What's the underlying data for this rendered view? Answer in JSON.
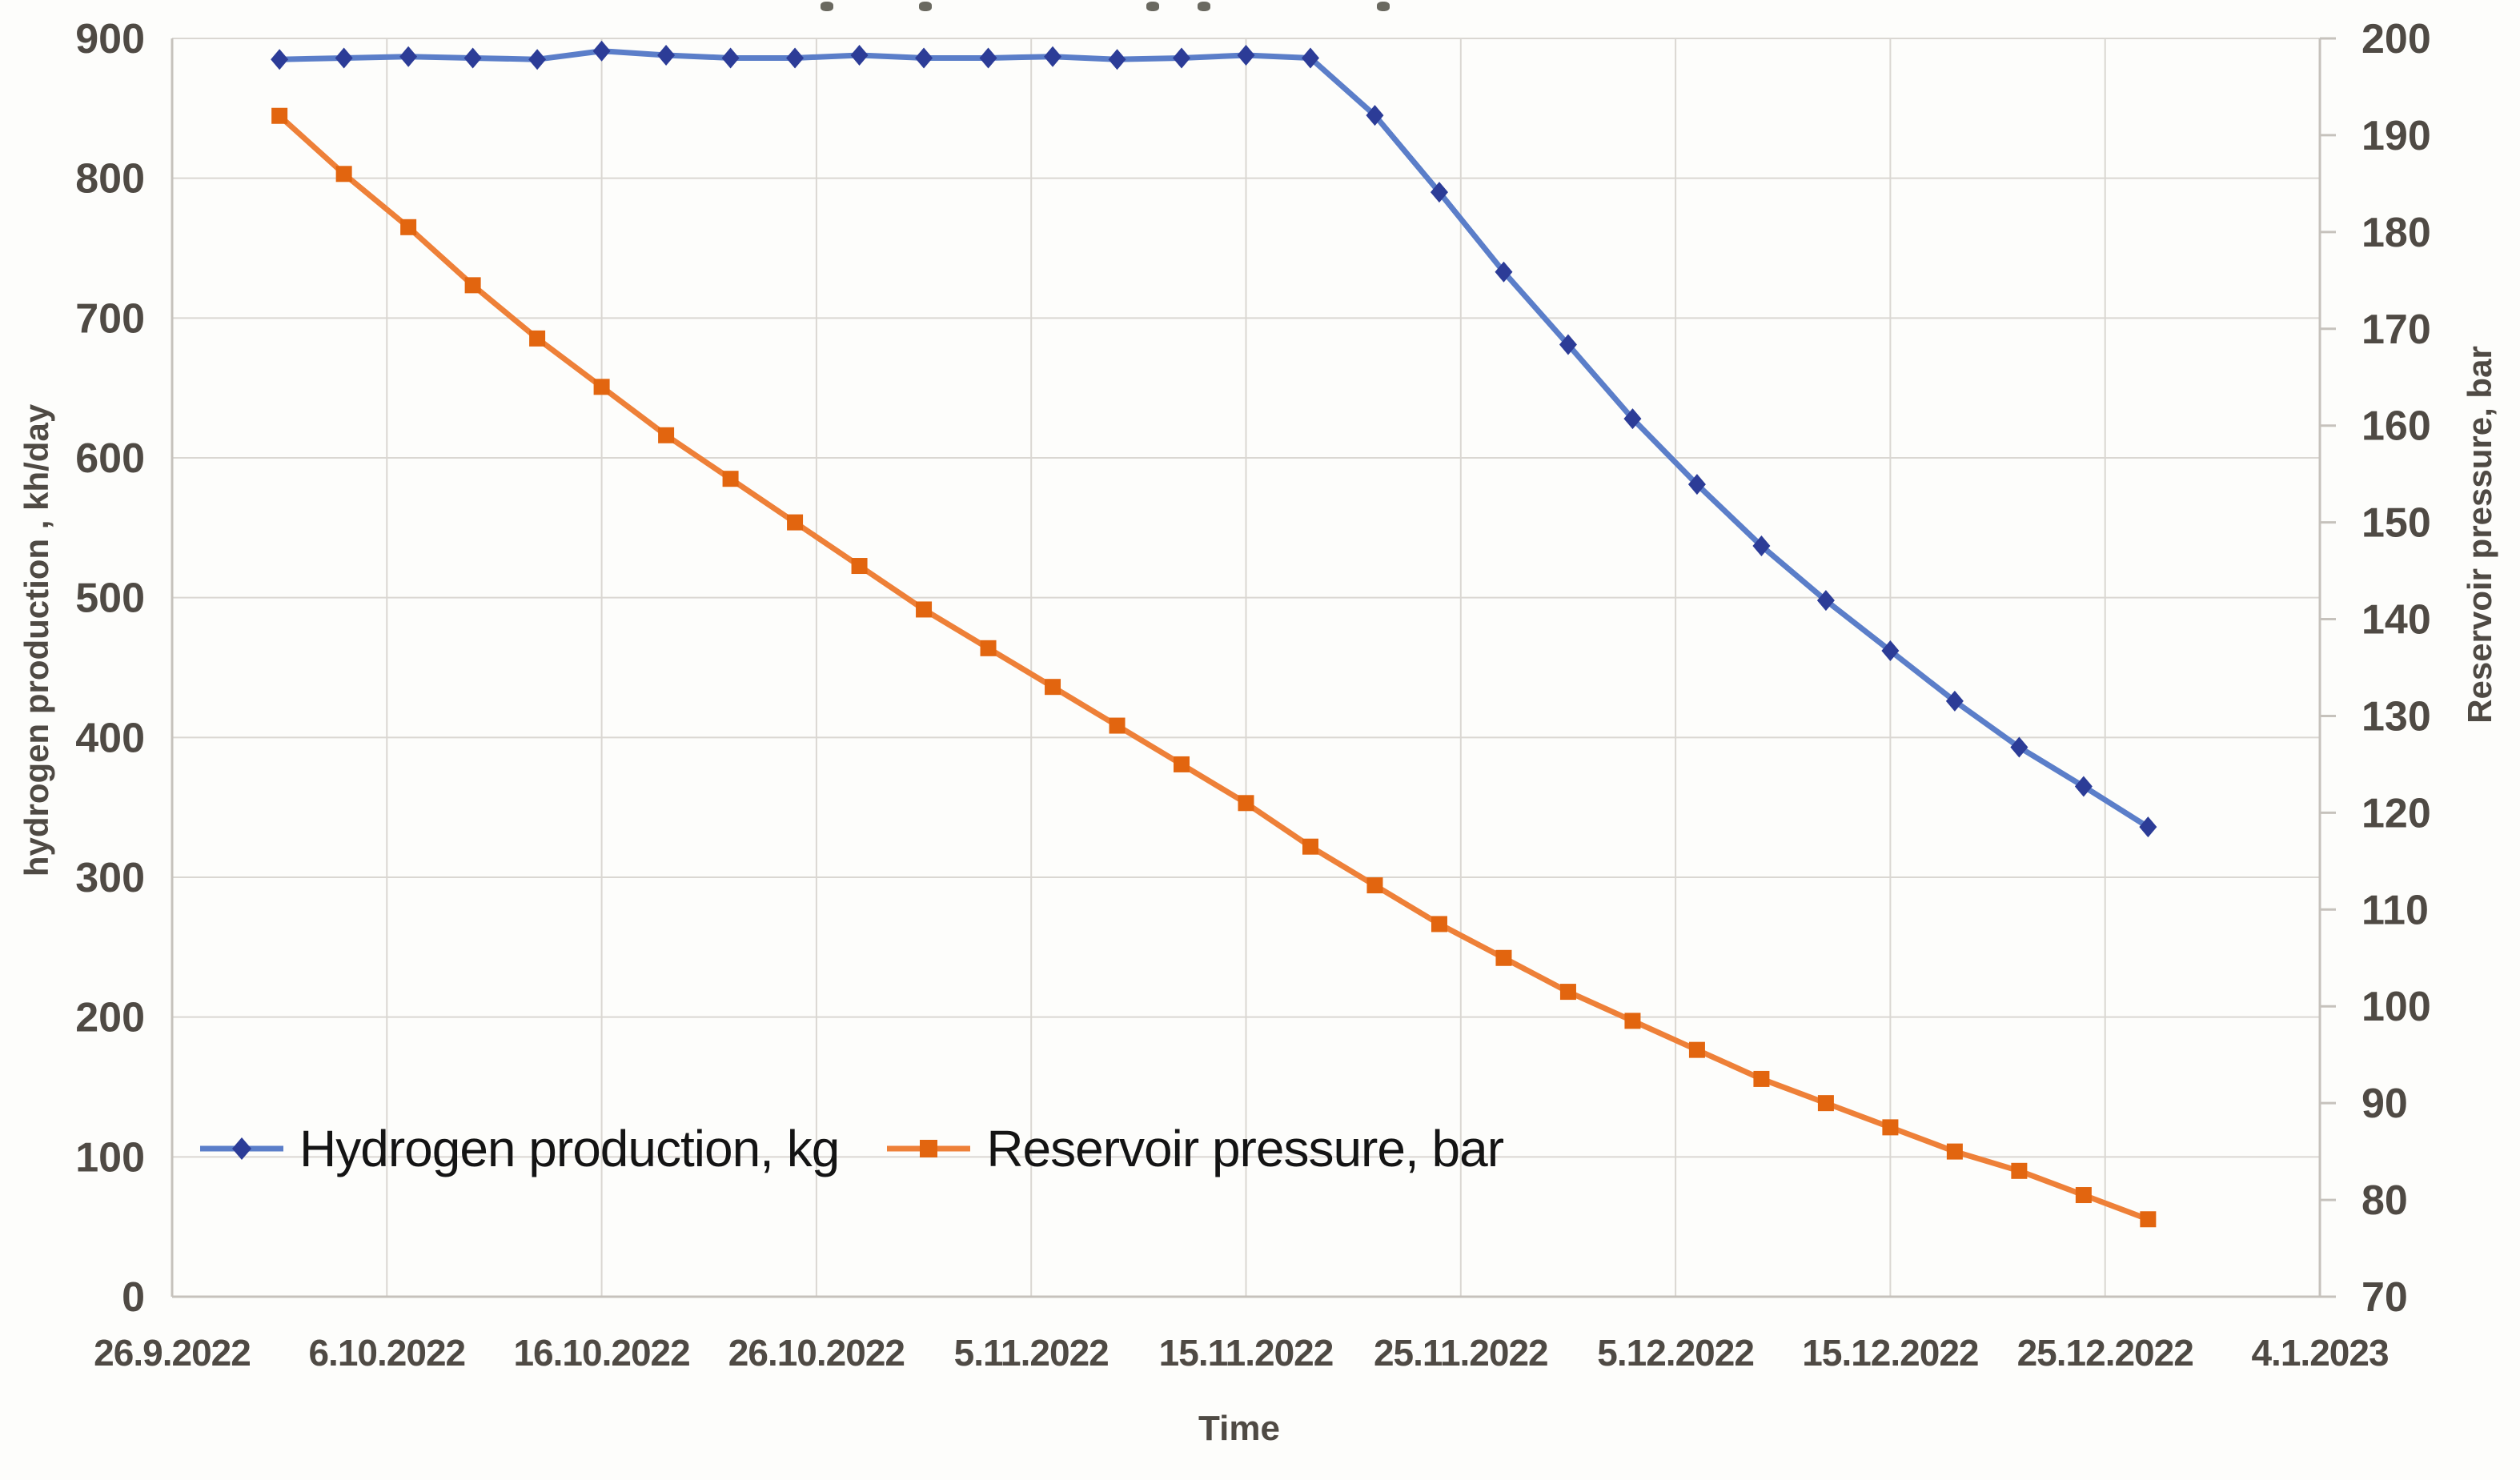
{
  "colors": {
    "background": "#fdfdfb",
    "gridline": "#dad7d2",
    "axis_line": "#c6c2bc",
    "tick_text": "#4f4a44",
    "legend_text": "#141414"
  },
  "artifacts": {
    "top_specks_x": [
      1025,
      1148,
      1432,
      1496,
      1720
    ]
  },
  "chart_data": {
    "type": "line",
    "title": "",
    "grid": true,
    "legend_position": "inside-bottom-left",
    "x": {
      "label": "Time",
      "tick_labels": [
        "26.9.2022",
        "6.10.2022",
        "16.10.2022",
        "26.10.2022",
        "5.11.2022",
        "15.11.2022",
        "25.11.2022",
        "5.12.2022",
        "15.12.2022",
        "25.12.2022",
        "4.1.2023"
      ],
      "tick_days": [
        0,
        10,
        20,
        30,
        40,
        50,
        60,
        70,
        80,
        90,
        100
      ],
      "domain_days": [
        0,
        100
      ]
    },
    "y_left": {
      "label": "hydrogen production , kh/day",
      "min": 0,
      "max": 900,
      "tick_step": 100,
      "tick_labels": [
        "0",
        "100",
        "200",
        "300",
        "400",
        "500",
        "600",
        "700",
        "800",
        "900"
      ]
    },
    "y_right": {
      "label": "Reservoir pressure, bar",
      "min": 70,
      "max": 200,
      "tick_step": 10,
      "tick_labels": [
        "70",
        "80",
        "90",
        "100",
        "110",
        "120",
        "130",
        "140",
        "150",
        "160",
        "170",
        "180",
        "190",
        "200"
      ]
    },
    "series": [
      {
        "name": "Hydrogen production, kg",
        "axis": "left",
        "marker": "diamond",
        "line_color": "#5b7ec9",
        "marker_color": "#2c3c97",
        "dates": [
          "1.10.2022",
          "4.10.2022",
          "7.10.2022",
          "10.10.2022",
          "13.10.2022",
          "16.10.2022",
          "19.10.2022",
          "22.10.2022",
          "25.10.2022",
          "28.10.2022",
          "31.10.2022",
          "3.11.2022",
          "6.11.2022",
          "9.11.2022",
          "12.11.2022",
          "15.11.2022",
          "18.11.2022",
          "21.11.2022",
          "24.11.2022",
          "27.11.2022",
          "30.11.2022",
          "3.12.2022",
          "6.12.2022",
          "9.12.2022",
          "12.12.2022",
          "15.12.2022",
          "18.12.2022",
          "21.12.2022",
          "24.12.2022",
          "27.12.2022"
        ],
        "x_days": [
          5,
          8,
          11,
          14,
          17,
          20,
          23,
          26,
          29,
          32,
          35,
          38,
          41,
          44,
          47,
          50,
          53,
          56,
          59,
          62,
          65,
          68,
          71,
          74,
          77,
          80,
          83,
          86,
          89,
          92
        ],
        "values": [
          885,
          886,
          887,
          886,
          885,
          891,
          888,
          886,
          886,
          888,
          886,
          886,
          887,
          885,
          886,
          888,
          886,
          845,
          790,
          733,
          681,
          628,
          581,
          537,
          498,
          462,
          426,
          393,
          365,
          336
        ]
      },
      {
        "name": "Reservoir pressure, bar",
        "axis": "right",
        "marker": "square",
        "line_color": "#ee8038",
        "marker_color": "#e2650f",
        "dates": [
          "1.10.2022",
          "4.10.2022",
          "7.10.2022",
          "10.10.2022",
          "13.10.2022",
          "16.10.2022",
          "19.10.2022",
          "22.10.2022",
          "25.10.2022",
          "28.10.2022",
          "31.10.2022",
          "3.11.2022",
          "6.11.2022",
          "9.11.2022",
          "12.11.2022",
          "15.11.2022",
          "18.11.2022",
          "21.11.2022",
          "24.11.2022",
          "27.11.2022",
          "30.11.2022",
          "3.12.2022",
          "6.12.2022",
          "9.12.2022",
          "12.12.2022",
          "15.12.2022",
          "18.12.2022",
          "21.12.2022",
          "24.12.2022",
          "27.12.2022"
        ],
        "x_days": [
          5,
          8,
          11,
          14,
          17,
          20,
          23,
          26,
          29,
          32,
          35,
          38,
          41,
          44,
          47,
          50,
          53,
          56,
          59,
          62,
          65,
          68,
          71,
          74,
          77,
          80,
          83,
          86,
          89,
          92
        ],
        "values": [
          192,
          186,
          180.5,
          174.5,
          169,
          164,
          159,
          154.5,
          150,
          145.5,
          141,
          137,
          133,
          129,
          125,
          121,
          116.5,
          112.5,
          108.5,
          105,
          101.5,
          98.5,
          95.5,
          92.5,
          90,
          87.5,
          85,
          83,
          80.5,
          78
        ]
      }
    ]
  }
}
